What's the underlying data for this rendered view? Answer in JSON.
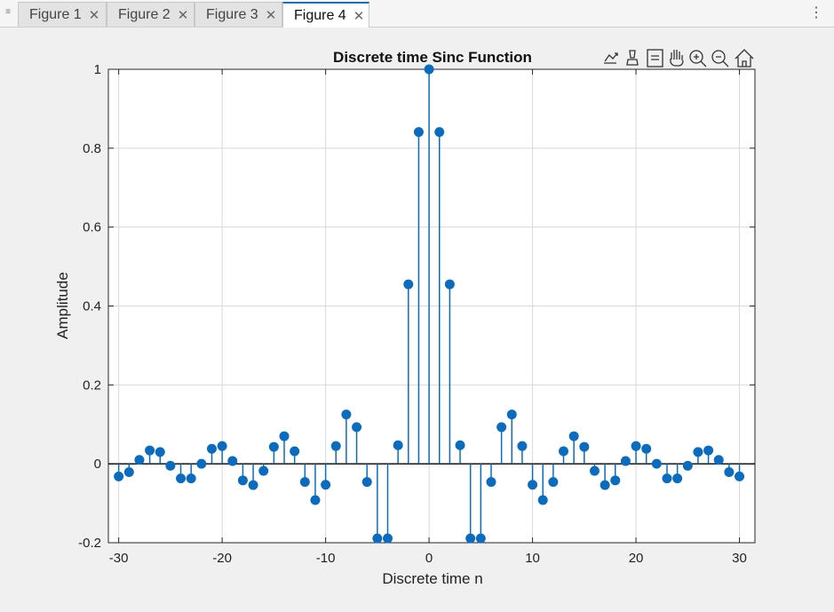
{
  "tabs": [
    {
      "label": "Figure 1",
      "active": false
    },
    {
      "label": "Figure 2",
      "active": false
    },
    {
      "label": "Figure 3",
      "active": false
    },
    {
      "label": "Figure 4",
      "active": true
    }
  ],
  "toolbar_icons": [
    "export-icon",
    "brush-icon",
    "datatip-icon",
    "pan-icon",
    "zoom-in-icon",
    "zoom-out-icon",
    "home-icon"
  ],
  "colors": {
    "stem": "#0b6cbf",
    "grid": "#d9d9d9",
    "axes": "#262626"
  },
  "chart_data": {
    "type": "stem",
    "title": "Discrete time Sinc Function",
    "xlabel": "Discrete time n",
    "ylabel": "Amplitude",
    "xlim": [
      -31,
      31.5
    ],
    "ylim": [
      -0.2,
      1
    ],
    "xticks": [
      -30,
      -20,
      -10,
      0,
      10,
      20,
      30
    ],
    "xtick_labels": [
      "-30",
      "-20",
      "-10",
      "0",
      "10",
      "20",
      "30"
    ],
    "yticks": [
      -0.2,
      0,
      0.2,
      0.4,
      0.6,
      0.8,
      1
    ],
    "ytick_labels": [
      "-0.2",
      "0",
      "0.2",
      "0.4",
      "0.6",
      "0.8",
      "1"
    ],
    "grid": true,
    "x": [
      -30,
      -29,
      -28,
      -27,
      -26,
      -25,
      -24,
      -23,
      -22,
      -21,
      -20,
      -19,
      -18,
      -17,
      -16,
      -15,
      -14,
      -13,
      -12,
      -11,
      -10,
      -9,
      -8,
      -7,
      -6,
      -5,
      -4,
      -3,
      -2,
      -1,
      0,
      1,
      2,
      3,
      4,
      5,
      6,
      7,
      8,
      9,
      10,
      11,
      12,
      13,
      14,
      15,
      16,
      17,
      18,
      19,
      20,
      21,
      22,
      23,
      24,
      25,
      26,
      27,
      28,
      29,
      30
    ],
    "y": [
      -0.032,
      -0.021,
      0.01,
      0.034,
      0.03,
      -0.005,
      -0.037,
      -0.037,
      0.0,
      0.038,
      0.045,
      0.007,
      -0.042,
      -0.054,
      -0.018,
      0.043,
      0.07,
      0.032,
      -0.046,
      -0.092,
      -0.053,
      0.045,
      0.125,
      0.093,
      -0.046,
      -0.189,
      -0.189,
      0.047,
      0.455,
      0.841,
      1.0,
      0.841,
      0.455,
      0.047,
      -0.189,
      -0.189,
      -0.046,
      0.093,
      0.125,
      0.045,
      -0.053,
      -0.092,
      -0.046,
      0.032,
      0.07,
      0.043,
      -0.018,
      -0.054,
      -0.042,
      0.007,
      0.045,
      0.038,
      0.0,
      -0.037,
      -0.037,
      -0.005,
      0.03,
      0.034,
      0.01,
      -0.021,
      -0.032
    ]
  }
}
